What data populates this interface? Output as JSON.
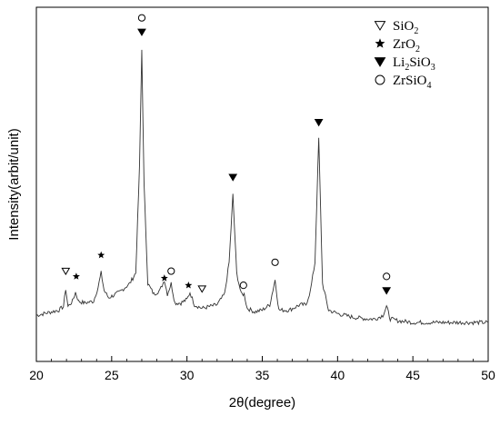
{
  "chart_data": {
    "type": "line",
    "xlabel": "2θ(degree)",
    "ylabel": "Intensity(arbit/unit)",
    "xlim": [
      20,
      50
    ],
    "ylim": [
      0,
      100
    ],
    "xticks": [
      20,
      25,
      30,
      35,
      40,
      45,
      50
    ],
    "yticks_visible": false,
    "grid": false,
    "legend_position": "top-right",
    "series": [
      {
        "x": [
          20,
          20.5,
          21,
          21.5,
          21.8,
          21.95,
          22.1,
          22.4,
          22.6,
          22.8,
          23.2,
          23.8,
          24.1,
          24.3,
          24.5,
          24.8,
          25.5,
          26.2,
          26.6,
          26.85,
          27.0,
          27.15,
          27.4,
          27.8,
          28.2,
          28.5,
          28.7,
          28.95,
          29.2,
          29.6,
          30.0,
          30.2,
          30.5,
          31.0,
          31.5,
          32.0,
          32.5,
          32.8,
          33.05,
          33.3,
          33.6,
          33.8,
          34.0,
          34.5,
          35.0,
          35.5,
          35.85,
          36.1,
          36.8,
          37.5,
          37.9,
          38.2,
          38.5,
          38.75,
          39.0,
          39.4,
          40,
          41,
          42,
          42.5,
          43.0,
          43.25,
          43.5,
          44,
          45,
          46,
          47,
          48,
          49,
          50
        ],
        "y": [
          13,
          13.5,
          14,
          14.5,
          15.5,
          20.5,
          15.5,
          17,
          19.5,
          17,
          16.5,
          17,
          21,
          25,
          20,
          18,
          19.5,
          22,
          25,
          55,
          88,
          50,
          22,
          19,
          20,
          23,
          19,
          22,
          16.5,
          16.5,
          17.5,
          19.5,
          16,
          15,
          15.5,
          16,
          19,
          28,
          47,
          25,
          19,
          19,
          15,
          14,
          14.5,
          16,
          23,
          14.5,
          14.5,
          16,
          16,
          20,
          28,
          63,
          22,
          14.5,
          13.5,
          12.5,
          12,
          12,
          13,
          15.5,
          12,
          11.5,
          11,
          11,
          11,
          11,
          11,
          11
        ]
      }
    ],
    "legend": [
      {
        "marker": "triangle-down-open",
        "label": "SiO",
        "sub": "2",
        "tail": ""
      },
      {
        "marker": "star-filled",
        "label": "ZrO",
        "sub": "2",
        "tail": ""
      },
      {
        "marker": "triangle-down-filled",
        "label": "Li",
        "sub": "2",
        "tail": "SiO",
        "sub2": "3"
      },
      {
        "marker": "circle-open",
        "label": "ZrSiO",
        "sub": "4",
        "tail": ""
      }
    ],
    "annotations": [
      {
        "phase": "SiO2",
        "marker": "triangle-down-open",
        "x": 21.95,
        "y": 25.5
      },
      {
        "phase": "ZrO2",
        "marker": "star-filled",
        "x": 22.65,
        "y": 24
      },
      {
        "phase": "ZrO2",
        "marker": "star-filled",
        "x": 24.3,
        "y": 30
      },
      {
        "phase": "ZrSiO4",
        "marker": "circle-open",
        "x": 27.0,
        "y": 97
      },
      {
        "phase": "Li2SiO3",
        "marker": "triangle-down-filled",
        "x": 27.0,
        "y": 93
      },
      {
        "phase": "ZrO2",
        "marker": "star-filled",
        "x": 28.5,
        "y": 23.5
      },
      {
        "phase": "ZrSiO4",
        "marker": "circle-open",
        "x": 28.95,
        "y": 25.5
      },
      {
        "phase": "ZrO2",
        "marker": "star-filled",
        "x": 30.1,
        "y": 21.5
      },
      {
        "phase": "SiO2",
        "marker": "triangle-down-open",
        "x": 31.0,
        "y": 20.5
      },
      {
        "phase": "Li2SiO3",
        "marker": "triangle-down-filled",
        "x": 33.05,
        "y": 52
      },
      {
        "phase": "ZrSiO4",
        "marker": "circle-open",
        "x": 33.75,
        "y": 21.5
      },
      {
        "phase": "ZrSiO4",
        "marker": "circle-open",
        "x": 35.85,
        "y": 28
      },
      {
        "phase": "Li2SiO3",
        "marker": "triangle-down-filled",
        "x": 38.75,
        "y": 67.5
      },
      {
        "phase": "ZrSiO4",
        "marker": "circle-open",
        "x": 43.25,
        "y": 24
      },
      {
        "phase": "Li2SiO3",
        "marker": "triangle-down-filled",
        "x": 43.25,
        "y": 20
      }
    ]
  }
}
